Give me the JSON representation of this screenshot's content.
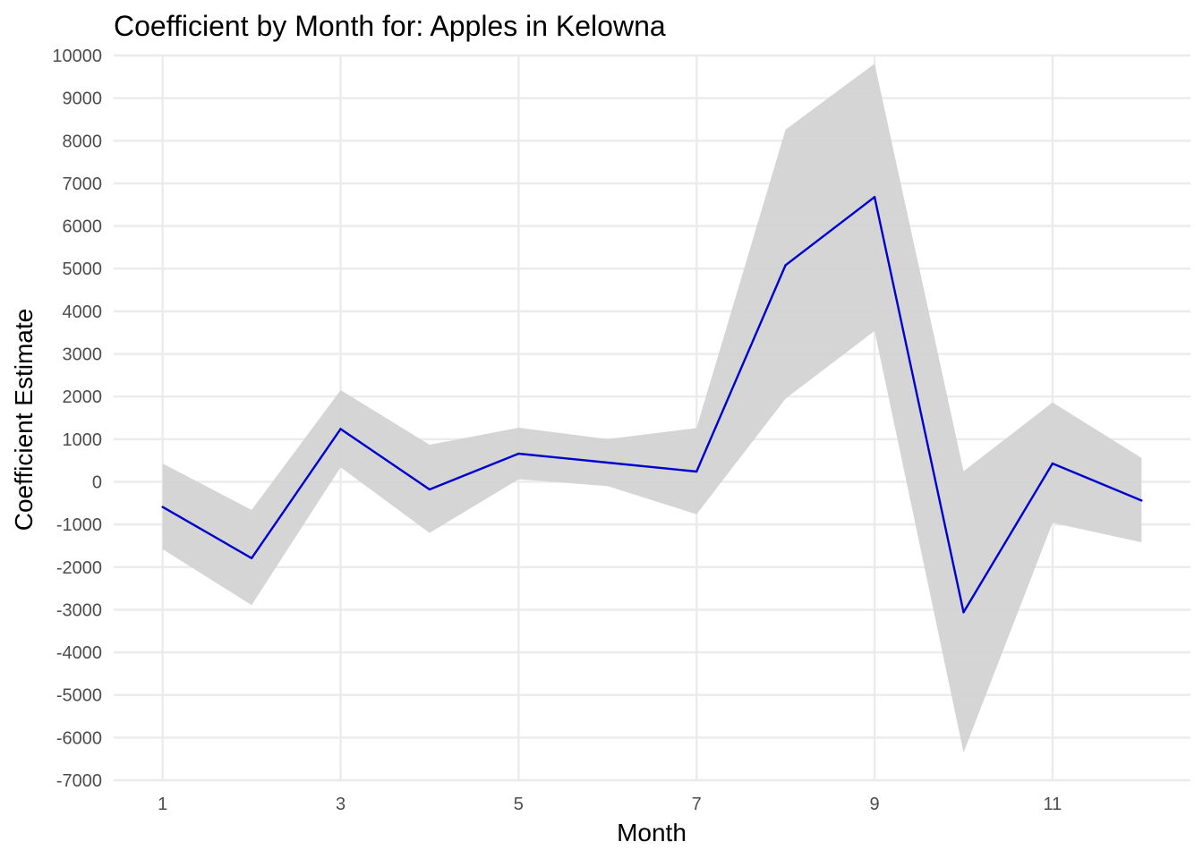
{
  "chart_data": {
    "type": "line",
    "title": "Coefficient by Month for: Apples in Kelowna",
    "xlabel": "Month",
    "ylabel": "Coefficient Estimate",
    "xlim": [
      0.45,
      12.55
    ],
    "ylim": [
      -7000,
      10000
    ],
    "x_ticks": [
      1,
      3,
      5,
      7,
      9,
      11
    ],
    "y_ticks": [
      -7000,
      -6000,
      -5000,
      -4000,
      -3000,
      -2000,
      -1000,
      0,
      1000,
      2000,
      3000,
      4000,
      5000,
      6000,
      7000,
      8000,
      9000,
      10000
    ],
    "x": [
      1,
      2,
      3,
      4,
      5,
      6,
      7,
      8,
      9,
      10,
      11,
      12
    ],
    "series": [
      {
        "values": [
          -590,
          -1790,
          1240,
          -180,
          660,
          450,
          240,
          5080,
          6680,
          -3060,
          430,
          -440
        ],
        "lower": [
          -1580,
          -2890,
          340,
          -1200,
          60,
          -100,
          -760,
          1950,
          3540,
          -6350,
          -960,
          -1420
        ],
        "upper": [
          430,
          -660,
          2150,
          870,
          1270,
          1000,
          1260,
          8260,
          9810,
          250,
          1860,
          560
        ]
      }
    ],
    "colors": {
      "line": "#0000cd",
      "band": "#d3d3d3",
      "grid": "#ebebeb",
      "tick_text": "#4d4d4d"
    },
    "grid": true,
    "legend": "none"
  }
}
